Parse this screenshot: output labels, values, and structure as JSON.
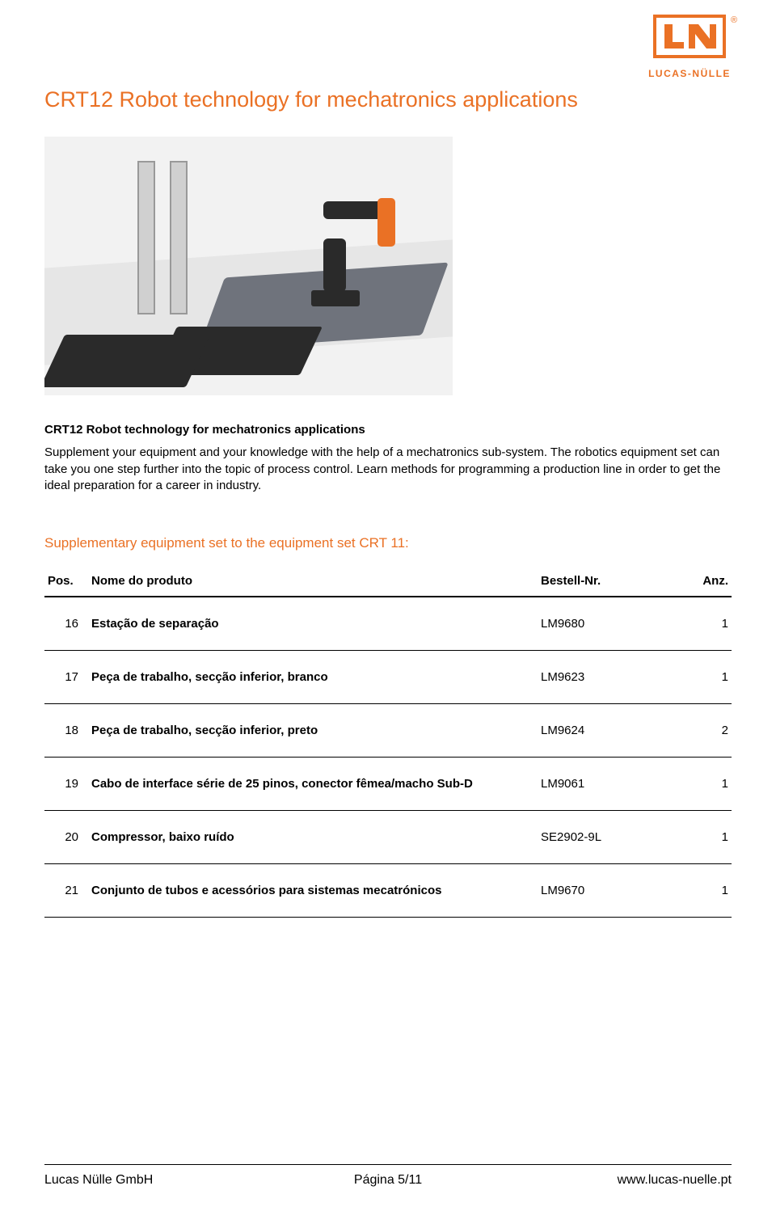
{
  "brand": {
    "name": "LUCAS-NÜLLE",
    "logo_primary": "#ea7125",
    "trademark": "®"
  },
  "title": "CRT12 Robot technology for mechatronics applications",
  "subtitle": "CRT12 Robot technology for mechatronics applications",
  "body": "Supplement your equipment and your knowledge with the help of a mechatronics sub-system. The robotics equipment set can take you one step further into the topic of process control. Learn methods for programming a production line in order to get the ideal preparation for a career in industry.",
  "supplementary_title": "Supplementary equipment set to the equipment set CRT 11:",
  "table": {
    "columns": [
      "Pos.",
      "Nome do produto",
      "Bestell-Nr.",
      "Anz."
    ],
    "rows": [
      {
        "pos": "16",
        "name": "Estação de separação",
        "order": "LM9680",
        "qty": "1"
      },
      {
        "pos": "17",
        "name": "Peça de trabalho, secção inferior, branco",
        "order": "LM9623",
        "qty": "1"
      },
      {
        "pos": "18",
        "name": "Peça de trabalho, secção inferior, preto",
        "order": "LM9624",
        "qty": "2"
      },
      {
        "pos": "19",
        "name": "Cabo de interface série de 25 pinos, conector fêmea/macho Sub-D",
        "order": "LM9061",
        "qty": "1"
      },
      {
        "pos": "20",
        "name": "Compressor, baixo ruído",
        "order": "SE2902-9L",
        "qty": "1"
      },
      {
        "pos": "21",
        "name": "Conjunto de tubos e acessórios para sistemas mecatrónicos",
        "order": "LM9670",
        "qty": "1"
      }
    ]
  },
  "footer": {
    "left": "Lucas Nülle GmbH",
    "center": "Página 5/11",
    "right": "www.lucas-nuelle.pt"
  },
  "colors": {
    "accent": "#ea7125",
    "text": "#000000",
    "background": "#ffffff"
  }
}
